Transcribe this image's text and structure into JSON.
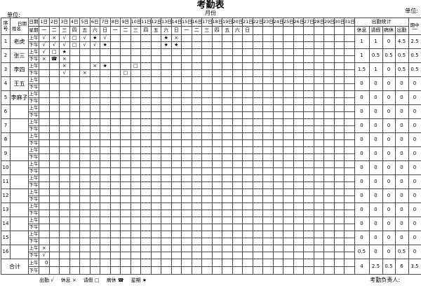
{
  "page": {
    "title": "考勤表",
    "subtitle": "月份",
    "unit_left": "单位:",
    "unit_right": "单位:",
    "sign_label": "考勤负责人:"
  },
  "header": {
    "seq": "序号",
    "date_label": "日期",
    "name_label": "姓名",
    "week_label": "星期",
    "days": [
      "1日",
      "2日",
      "3日",
      "4日",
      "5日",
      "6日",
      "7日",
      "8日",
      "9日",
      "10日",
      "11日",
      "12日",
      "13日",
      "14日",
      "15日",
      "16日",
      "17日",
      "18日",
      "19日",
      "20日",
      "21日",
      "22日",
      "23日",
      "24日",
      "25日",
      "26日",
      "27日",
      "28日",
      "29日",
      "30日",
      "31日"
    ],
    "weekdays": [
      "一",
      "二",
      "三",
      "四",
      "五",
      "六",
      "日",
      "一",
      "二",
      "三",
      "四",
      "五",
      "六",
      "日",
      "一",
      "二",
      "三",
      "四",
      "五",
      "六",
      "日",
      "",
      "",
      "",
      "",
      "",
      "",
      "",
      "",
      "",
      ""
    ],
    "stats_title": "出勤统计",
    "stats_cols": [
      "休息",
      "请假",
      "病休",
      "出勤"
    ],
    "last_col": "期中"
  },
  "labels": {
    "am": "上午",
    "pm": "下午",
    "total": "合计"
  },
  "legend": [
    {
      "label": "出勤",
      "symbol": "√"
    },
    {
      "label": "休息",
      "symbol": "×"
    },
    {
      "label": "请假",
      "symbol": "□"
    },
    {
      "label": "病休",
      "symbol": "☎"
    },
    {
      "label": "星期",
      "symbol": "★"
    }
  ],
  "rows": [
    {
      "no": "1",
      "name": "老虎",
      "am": {
        "1": "√",
        "2": "×",
        "3": "√",
        "4": "□",
        "5": "√",
        "6": "★",
        "7": "√",
        "13": "★",
        "14": "×"
      },
      "pm": {
        "1": "√",
        "2": "√",
        "3": "√",
        "4": "□",
        "5": "√",
        "6": "√",
        "7": "★",
        "13": "★",
        "14": "★"
      },
      "stats": [
        "1",
        "1",
        "0",
        "4.5",
        "2.5"
      ]
    },
    {
      "no": "2",
      "name": "张三",
      "am": {
        "1": "√",
        "2": "□",
        "3": "★"
      },
      "pm": {
        "1": "×",
        "2": "☎",
        "3": "×"
      },
      "stats": [
        "1",
        "0.5",
        "0.5",
        "0.5",
        "0.5"
      ]
    },
    {
      "no": "3",
      "name": "李四",
      "am": {
        "3": "×",
        "6": "×",
        "7": "★",
        "10": "□"
      },
      "pm": {
        "3": "√",
        "5": "×",
        "9": "□"
      },
      "stats": [
        "1.5",
        "1",
        "0",
        "0.5",
        "0.5"
      ]
    },
    {
      "no": "4",
      "name": "王五",
      "am": {},
      "pm": {},
      "stats": [
        "0",
        "0",
        "0",
        "0",
        "0"
      ]
    },
    {
      "no": "5",
      "name": "李麻子",
      "am": {},
      "pm": {},
      "stats": [
        "0",
        "0",
        "0",
        "0",
        "0"
      ]
    },
    {
      "no": "6",
      "name": "",
      "am": {},
      "pm": {},
      "stats": [
        "0",
        "0",
        "0",
        "0",
        "0"
      ]
    },
    {
      "no": "7",
      "name": "",
      "am": {},
      "pm": {},
      "stats": [
        "0",
        "0",
        "0",
        "0",
        "0"
      ]
    },
    {
      "no": "8",
      "name": "",
      "am": {},
      "pm": {},
      "stats": [
        "0",
        "0",
        "0",
        "0",
        "0"
      ]
    },
    {
      "no": "9",
      "name": "",
      "am": {},
      "pm": {},
      "stats": [
        "0",
        "0",
        "0",
        "0",
        "0"
      ]
    },
    {
      "no": "10",
      "name": "",
      "am": {},
      "pm": {},
      "stats": [
        "0",
        "0",
        "0",
        "0",
        "0"
      ]
    },
    {
      "no": "11",
      "name": "",
      "am": {},
      "pm": {},
      "stats": [
        "0",
        "0",
        "0",
        "0",
        "0"
      ]
    },
    {
      "no": "12",
      "name": "",
      "am": {},
      "pm": {},
      "stats": [
        "0",
        "0",
        "0",
        "0",
        "0"
      ]
    },
    {
      "no": "13",
      "name": "",
      "am": {},
      "pm": {},
      "stats": [
        "0",
        "0",
        "0",
        "0",
        "0"
      ]
    },
    {
      "no": "14",
      "name": "",
      "am": {},
      "pm": {},
      "stats": [
        "0",
        "0",
        "0",
        "0",
        "0"
      ]
    },
    {
      "no": "15",
      "name": "",
      "am": {},
      "pm": {},
      "stats": [
        "0",
        "0",
        "0",
        "0",
        "0"
      ]
    },
    {
      "no": "16",
      "name": "",
      "am": {
        "1": "×"
      },
      "pm": {
        "1": "√"
      },
      "stats": [
        "0.5",
        "0",
        "0",
        "0.5",
        "0"
      ]
    }
  ],
  "total": {
    "am": {
      "1": "0"
    },
    "pm": {},
    "stats": [
      "4",
      "2.5",
      "0.5",
      "6",
      "3.5"
    ]
  }
}
